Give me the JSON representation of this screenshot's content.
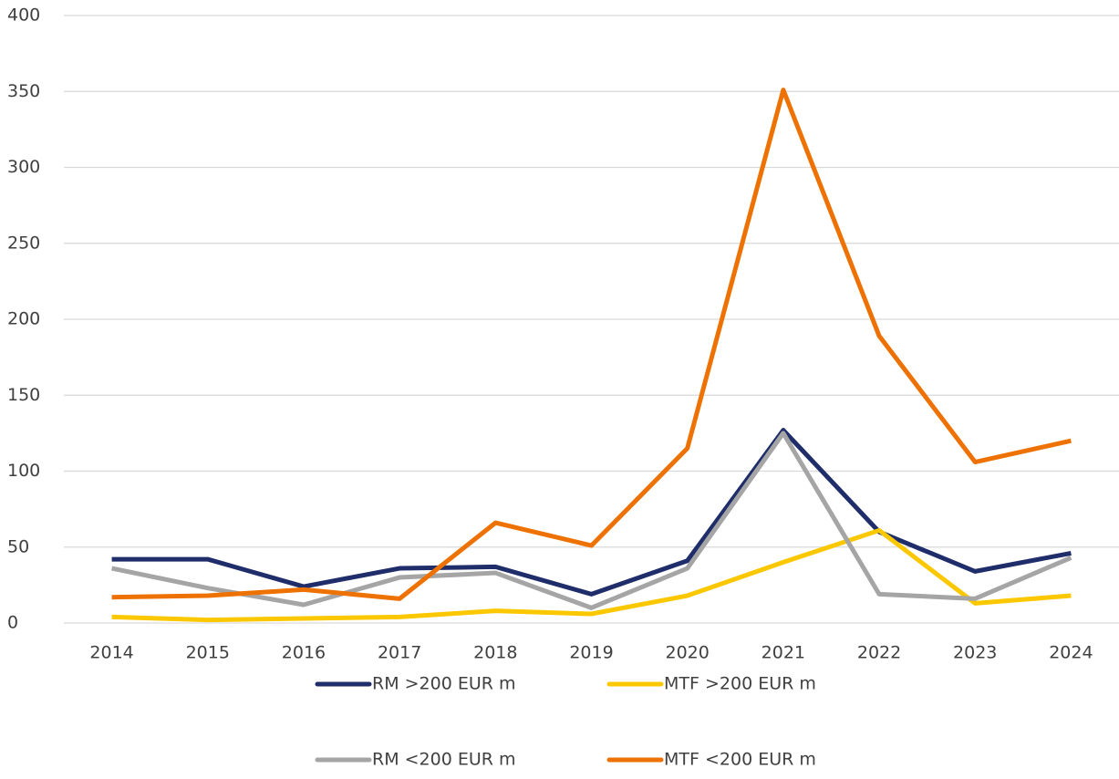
{
  "chart_data": {
    "type": "line",
    "categories": [
      "2014",
      "2015",
      "2016",
      "2017",
      "2018",
      "2019",
      "2020",
      "2021",
      "2022",
      "2023",
      "2024"
    ],
    "series": [
      {
        "name": "RM >200 EUR m",
        "color": "#1f2d6a",
        "values": [
          42,
          42,
          24,
          36,
          37,
          19,
          41,
          127,
          60,
          34,
          46
        ]
      },
      {
        "name": "MTF >200 EUR m",
        "color": "#fbc800",
        "values": [
          4,
          2,
          3,
          4,
          8,
          6,
          18,
          40,
          61,
          13,
          18
        ]
      },
      {
        "name": "RM <200 EUR m",
        "color": "#a5a5a5",
        "values": [
          36,
          23,
          12,
          30,
          33,
          10,
          36,
          125,
          19,
          16,
          43
        ]
      },
      {
        "name": "MTF <200 EUR m",
        "color": "#ee7203",
        "values": [
          17,
          18,
          22,
          16,
          66,
          51,
          115,
          351,
          189,
          106,
          120
        ]
      }
    ],
    "ylim": [
      0,
      400
    ],
    "yticks": [
      0,
      50,
      100,
      150,
      200,
      250,
      300,
      350,
      400
    ],
    "grid": true,
    "legend": "bottom"
  }
}
